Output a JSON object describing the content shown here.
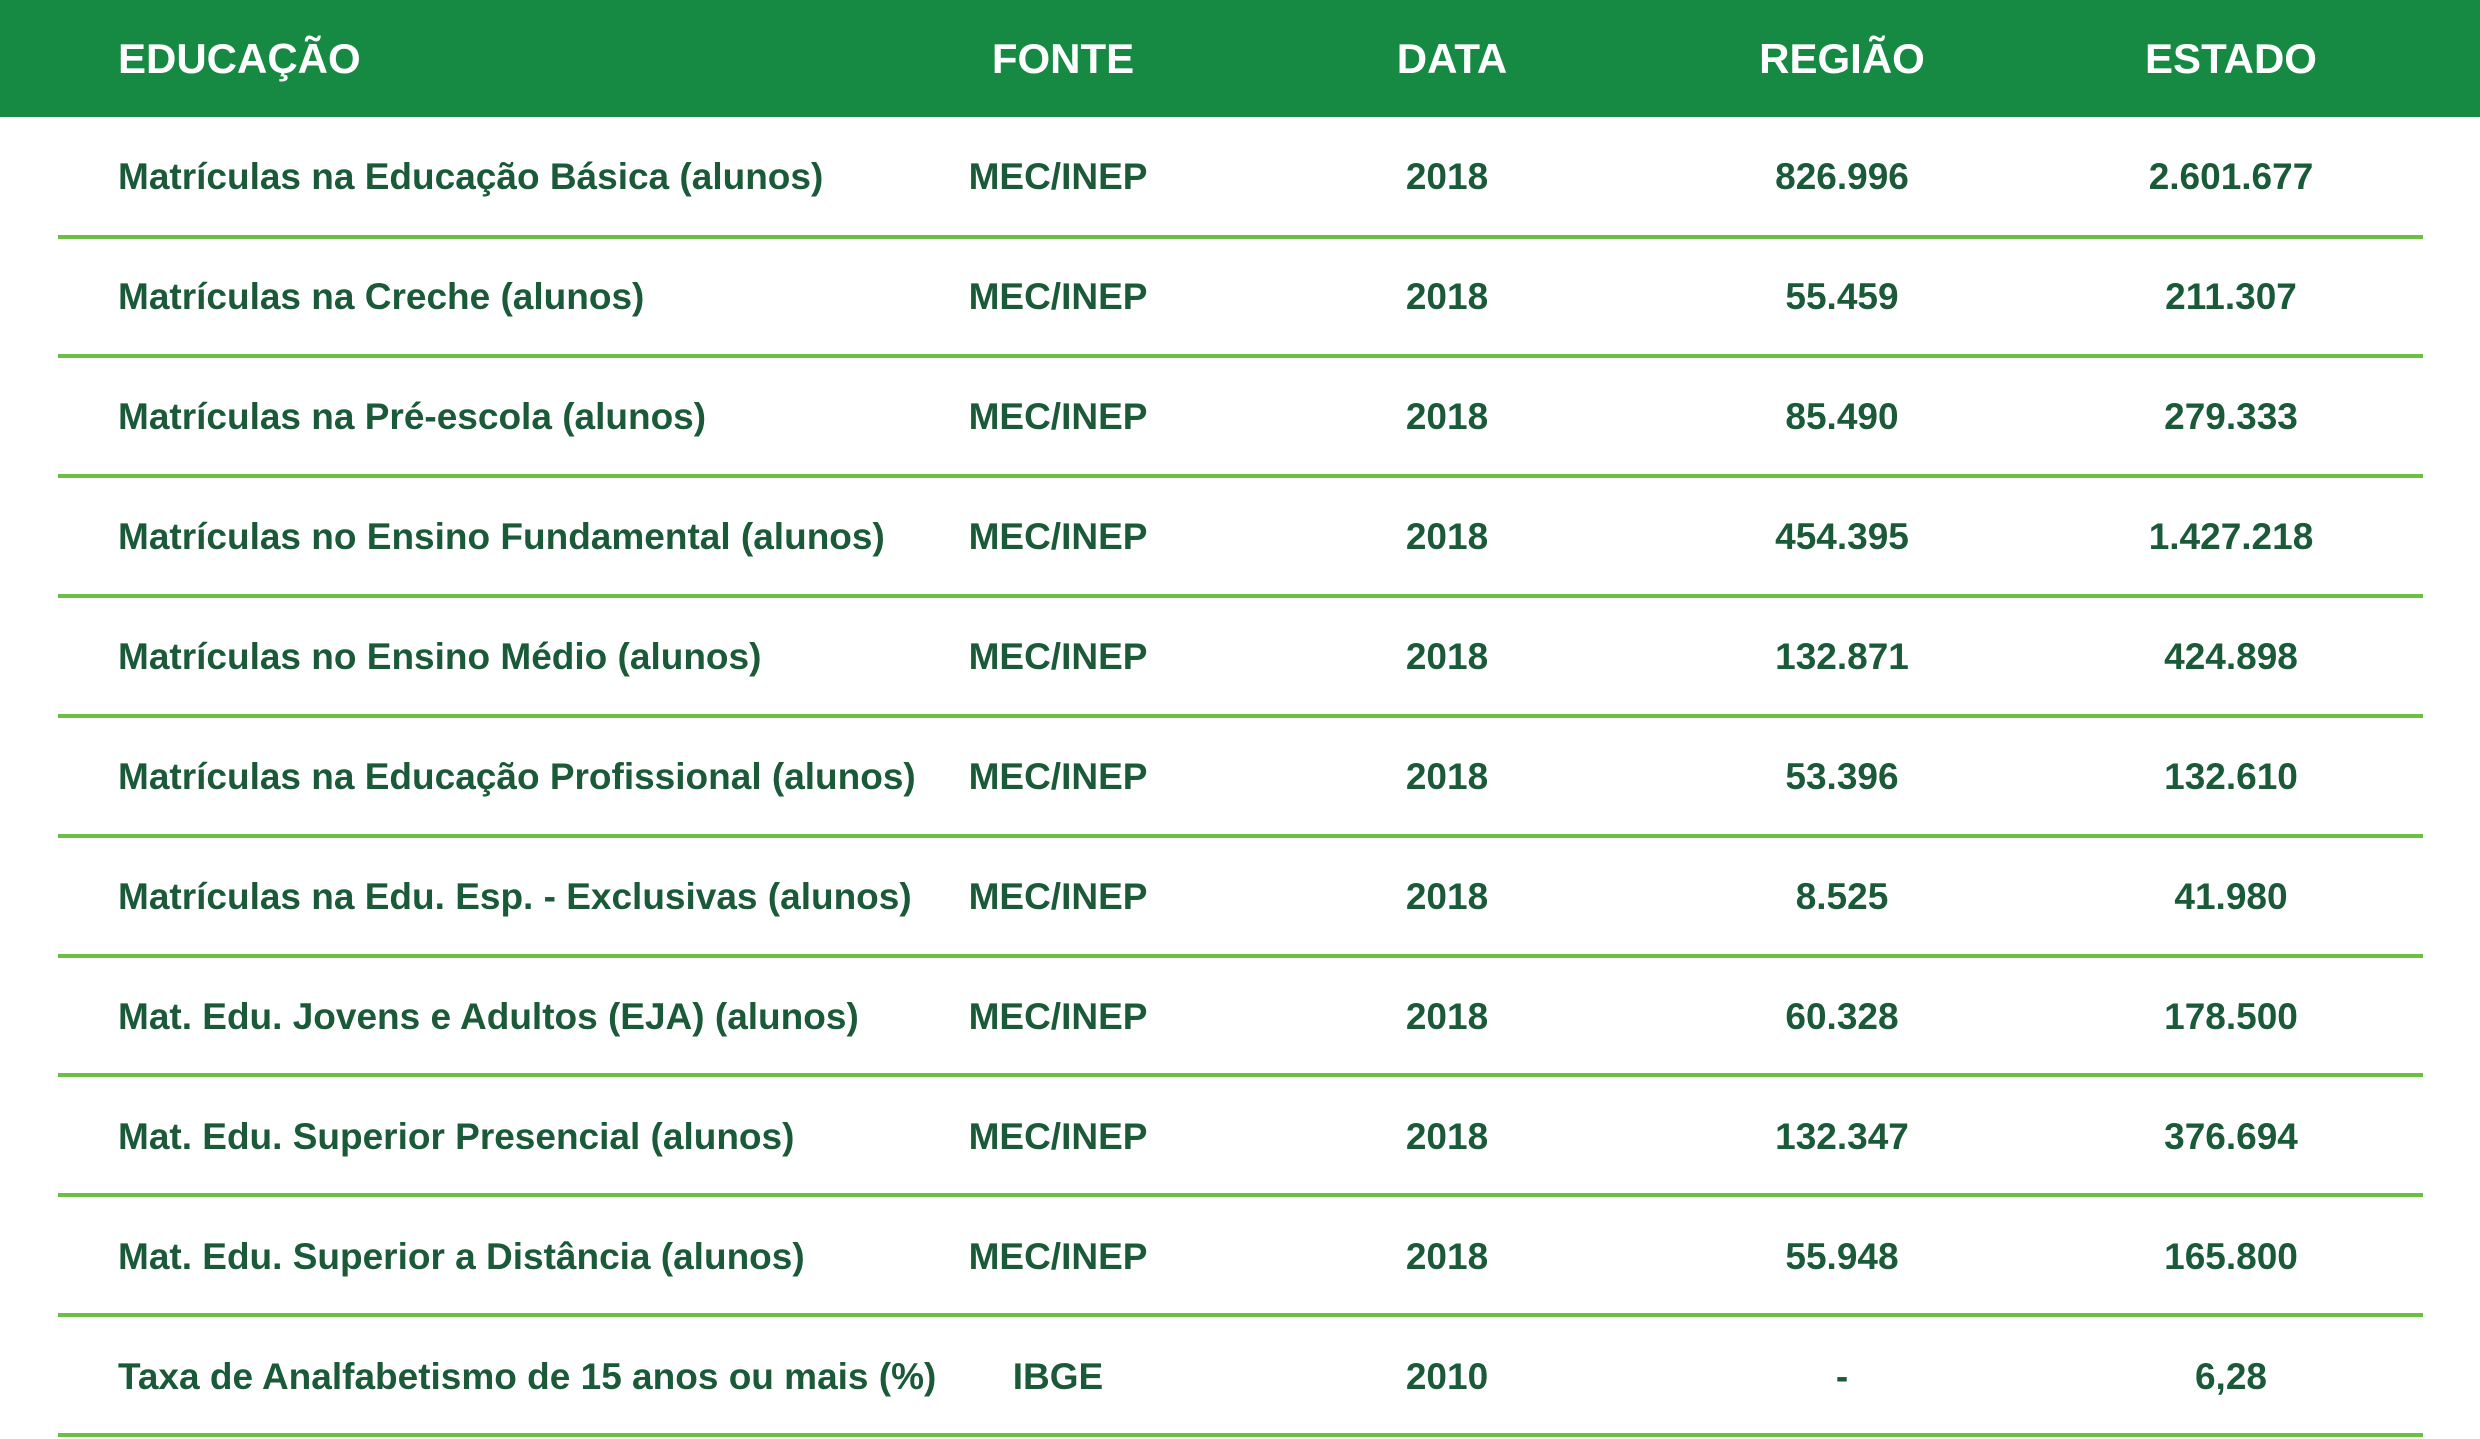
{
  "header": {
    "educacao": "EDUCAÇÃO",
    "fonte": "FONTE",
    "data": "DATA",
    "regiao": "REGIÃO",
    "estado": "ESTADO"
  },
  "rows": [
    {
      "label": "Matrículas na Educação Básica (alunos)",
      "fonte": "MEC/INEP",
      "data": "2018",
      "regiao": "826.996",
      "estado": "2.601.677"
    },
    {
      "label": "Matrículas na Creche (alunos)",
      "fonte": "MEC/INEP",
      "data": "2018",
      "regiao": "55.459",
      "estado": "211.307"
    },
    {
      "label": "Matrículas na Pré-escola (alunos)",
      "fonte": "MEC/INEP",
      "data": "2018",
      "regiao": "85.490",
      "estado": "279.333"
    },
    {
      "label": "Matrículas no Ensino Fundamental (alunos)",
      "fonte": "MEC/INEP",
      "data": "2018",
      "regiao": "454.395",
      "estado": "1.427.218"
    },
    {
      "label": "Matrículas no Ensino Médio (alunos)",
      "fonte": "MEC/INEP",
      "data": "2018",
      "regiao": "132.871",
      "estado": "424.898"
    },
    {
      "label": "Matrículas na Educação Profissional (alunos)",
      "fonte": "MEC/INEP",
      "data": "2018",
      "regiao": "53.396",
      "estado": "132.610"
    },
    {
      "label": "Matrículas na Edu. Esp. - Exclusivas (alunos)",
      "fonte": "MEC/INEP",
      "data": "2018",
      "regiao": "8.525",
      "estado": "41.980"
    },
    {
      "label": "Mat. Edu. Jovens e Adultos (EJA) (alunos)",
      "fonte": "MEC/INEP",
      "data": "2018",
      "regiao": "60.328",
      "estado": "178.500"
    },
    {
      "label": "Mat. Edu. Superior Presencial (alunos)",
      "fonte": "MEC/INEP",
      "data": "2018",
      "regiao": "132.347",
      "estado": "376.694"
    },
    {
      "label": "Mat. Edu. Superior a Distância (alunos)",
      "fonte": "MEC/INEP",
      "data": "2018",
      "regiao": "55.948",
      "estado": "165.800"
    },
    {
      "label": "Taxa de Analfabetismo de 15 anos ou mais (%)",
      "fonte": "IBGE",
      "data": "2010",
      "regiao": "-",
      "estado": "6,28"
    }
  ],
  "colors": {
    "header_bg": "#168a43",
    "text": "#1a5a38",
    "divider": "#6bbf45"
  }
}
